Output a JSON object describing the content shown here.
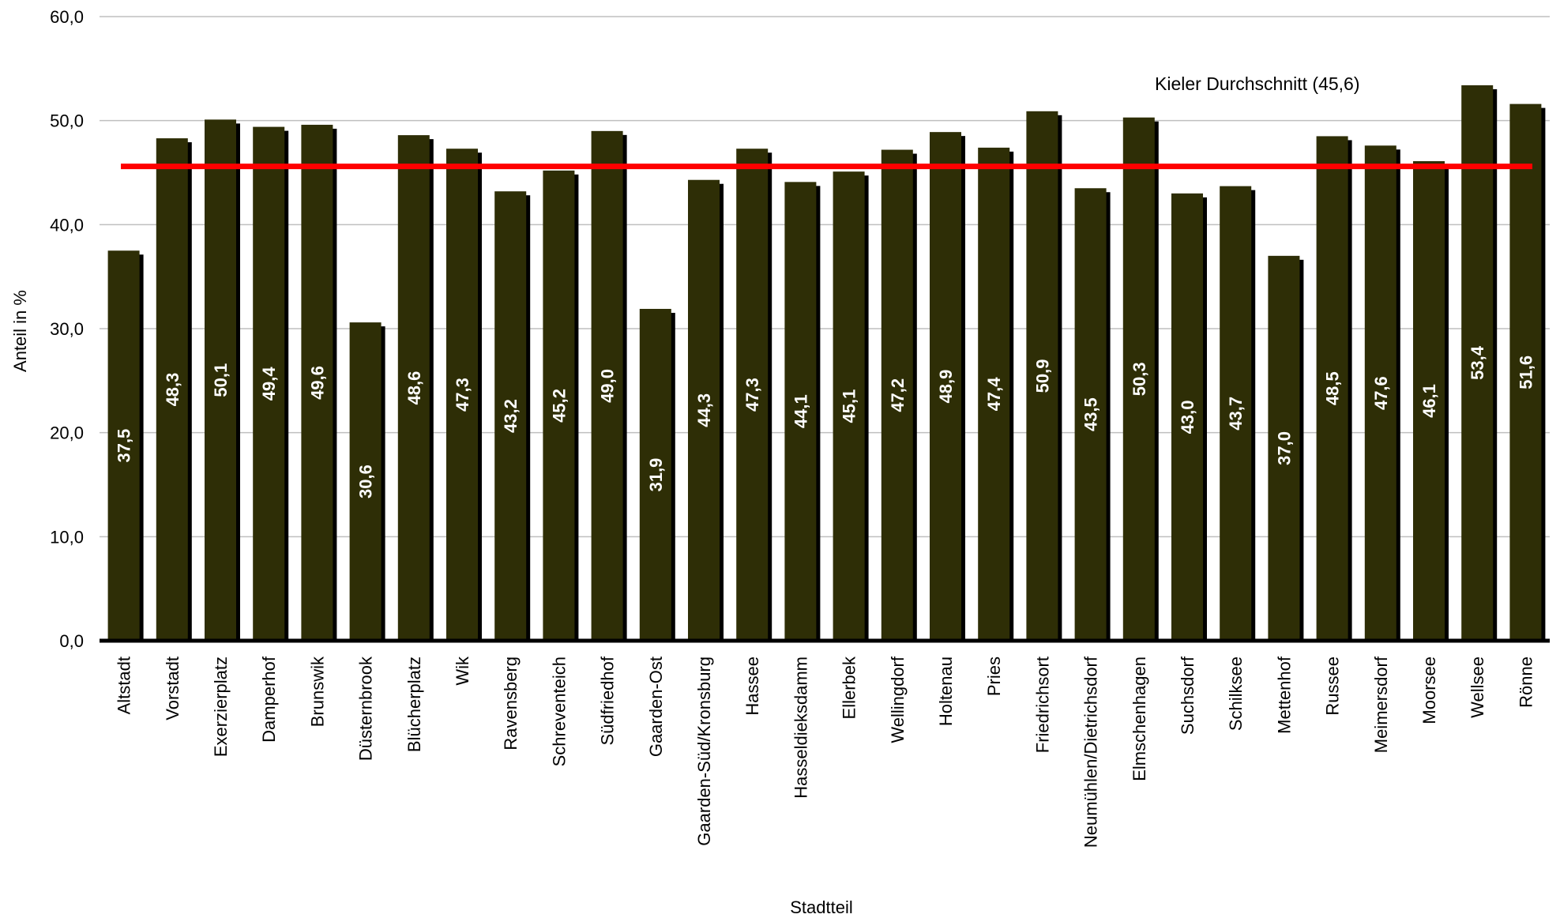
{
  "chart_data": {
    "type": "bar",
    "xlabel": "Stadtteil",
    "ylabel": "Anteil in %",
    "ylim": [
      0,
      60
    ],
    "yticks": [
      "0,0",
      "10,0",
      "20,0",
      "30,0",
      "40,0",
      "50,0",
      "60,0"
    ],
    "grid": true,
    "categories": [
      "Altstadt",
      "Vorstadt",
      "Exerzierplatz",
      "Damperhof",
      "Brunswik",
      "Düsternbrook",
      "Blücherplatz",
      "Wik",
      "Ravensberg",
      "Schreventeich",
      "Südfriedhof",
      "Gaarden-Ost",
      "Gaarden-Süd/Kronsburg",
      "Hassee",
      "Hasseldieksdamm",
      "Ellerbek",
      "Wellingdorf",
      "Holtenau",
      "Pries",
      "Friedrichsort",
      "Neumühlen/Dietrichsdorf",
      "Elmschenhagen",
      "Suchsdorf",
      "Schilksee",
      "Mettenhof",
      "Russee",
      "Meimersdorf",
      "Moorsee",
      "Wellsee",
      "Rönne"
    ],
    "values": [
      37.5,
      48.3,
      50.1,
      49.4,
      49.6,
      30.6,
      48.6,
      47.3,
      43.2,
      45.2,
      49.0,
      31.9,
      44.3,
      47.3,
      44.1,
      45.1,
      47.2,
      48.9,
      47.4,
      50.9,
      43.5,
      50.3,
      43.0,
      43.7,
      37.0,
      48.5,
      47.6,
      46.1,
      53.4,
      51.6
    ],
    "data_labels": [
      "37,5",
      "48,3",
      "50,1",
      "49,4",
      "49,6",
      "30,6",
      "48,6",
      "47,3",
      "43,2",
      "45,2",
      "49,0",
      "31,9",
      "44,3",
      "47,3",
      "44,1",
      "45,1",
      "47,2",
      "48,9",
      "47,4",
      "50,9",
      "43,5",
      "50,3",
      "43,0",
      "43,7",
      "37,0",
      "48,5",
      "47,6",
      "46,1",
      "53,4",
      "51,6"
    ],
    "reference_line": {
      "value": 45.6,
      "label": "Kieler Durchschnitt (45,6)"
    },
    "colors": {
      "bar": "#2e2e06",
      "bar_shadow": "#000000",
      "reference_line": "#ff0000",
      "grid": "#bfbfbf",
      "label": "#ffffff"
    }
  }
}
